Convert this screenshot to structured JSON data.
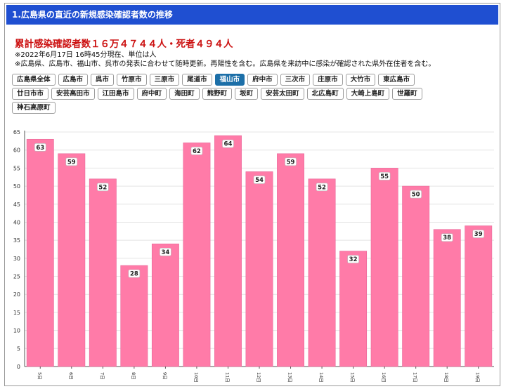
{
  "header": {
    "title": "1.広島県の直近の新規感染確認者数の推移"
  },
  "summary": {
    "title": "累計感染確認者数１６万４７４４人・死者４９４人",
    "note_1": "※2022年6月17日 16時45分現在、単位は人",
    "note_2": "※広島県、広島市、福山市、呉市の発表に合わせて随時更新。再陽性を含む。広島県を来訪中に感染が確認された県外在住者を含む。"
  },
  "tabs": {
    "active": "福山市",
    "rows": [
      [
        "広島県全体",
        "広島市",
        "呉市",
        "竹原市",
        "三原市",
        "尾道市",
        "福山市",
        "府中市",
        "三次市",
        "庄原市",
        "大竹市",
        "東広島市"
      ],
      [
        "廿日市市",
        "安芸高田市",
        "江田島市",
        "府中町",
        "海田町",
        "熊野町",
        "坂町",
        "安芸太田町",
        "北広島町",
        "大崎上島町",
        "世羅町"
      ],
      [
        "神石高原町"
      ]
    ]
  },
  "colors": {
    "bar": "#ff7ba8",
    "bar_stroke": "#e8689a",
    "header": "#1f4fd1",
    "active_tab": "#1c6fa8"
  },
  "chart_data": {
    "type": "bar",
    "categories": [
      "5日",
      "6日",
      "7日",
      "8日",
      "9日",
      "10日",
      "11日",
      "12日",
      "13日",
      "14日",
      "15日",
      "16日",
      "17日",
      "18日",
      "19日"
    ],
    "values": [
      63,
      59,
      52,
      28,
      34,
      62,
      64,
      54,
      59,
      52,
      32,
      55,
      50,
      38,
      39
    ],
    "ylim": [
      0,
      65
    ],
    "yticks": [
      0,
      5,
      10,
      15,
      20,
      25,
      30,
      35,
      40,
      45,
      50,
      55,
      60,
      65
    ],
    "grid": true,
    "data_labels": true
  }
}
